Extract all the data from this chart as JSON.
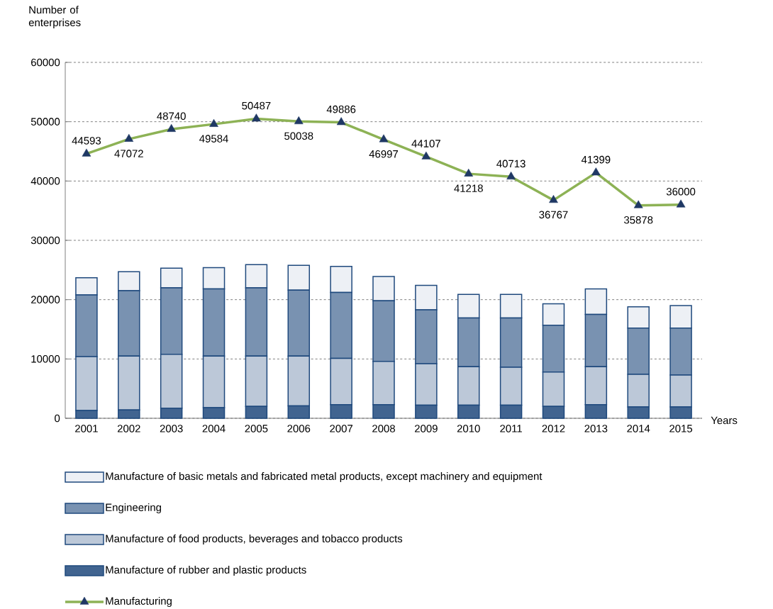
{
  "chart_data": {
    "type": "bar",
    "stacked": true,
    "ylabel": "Number of enterprises",
    "xlabel": "Years",
    "categories": [
      "2001",
      "2002",
      "2003",
      "2004",
      "2005",
      "2006",
      "2007",
      "2008",
      "2009",
      "2010",
      "2011",
      "2012",
      "2013",
      "2014",
      "2015"
    ],
    "series": [
      {
        "name": "Manufacture of rubber and plastic products",
        "color": "#1f497d",
        "values": [
          1300,
          1400,
          1700,
          1800,
          2000,
          2100,
          2300,
          2300,
          2200,
          2200,
          2200,
          2000,
          2300,
          1900,
          1900
        ]
      },
      {
        "name": "Manufacture of food products, beverages and tobacco products",
        "color": "#1f497d",
        "values": [
          9100,
          9100,
          9100,
          8700,
          8500,
          8400,
          7800,
          7300,
          7000,
          6500,
          6400,
          5800,
          6400,
          5500,
          5400
        ]
      },
      {
        "name": "Engineering",
        "color": "#1f497d",
        "values": [
          10400,
          11000,
          11200,
          11300,
          11500,
          11100,
          11100,
          10200,
          9100,
          8200,
          8300,
          7900,
          8800,
          7800,
          7900
        ]
      },
      {
        "name": "Manufacture of basic metals and fabricated metal products, except machinery and equipment",
        "color": "#1f497d",
        "values": [
          2900,
          3200,
          3300,
          3600,
          3900,
          4200,
          4400,
          4100,
          4100,
          4000,
          4000,
          3600,
          4300,
          3600,
          3800
        ]
      },
      {
        "name": "Manufacturing",
        "type": "line",
        "color": "#8db255",
        "data_labels": true,
        "values": [
          44593,
          47072,
          48740,
          49584,
          50487,
          50038,
          49886,
          46997,
          44107,
          41218,
          40713,
          36767,
          41399,
          35878,
          36000
        ]
      }
    ],
    "ylim": [
      0,
      60000
    ],
    "yticks": [
      0,
      10000,
      20000,
      30000,
      40000,
      50000,
      60000
    ],
    "grid": "y",
    "legend": "bottom",
    "marker": "triangle",
    "line_style": "solid"
  }
}
